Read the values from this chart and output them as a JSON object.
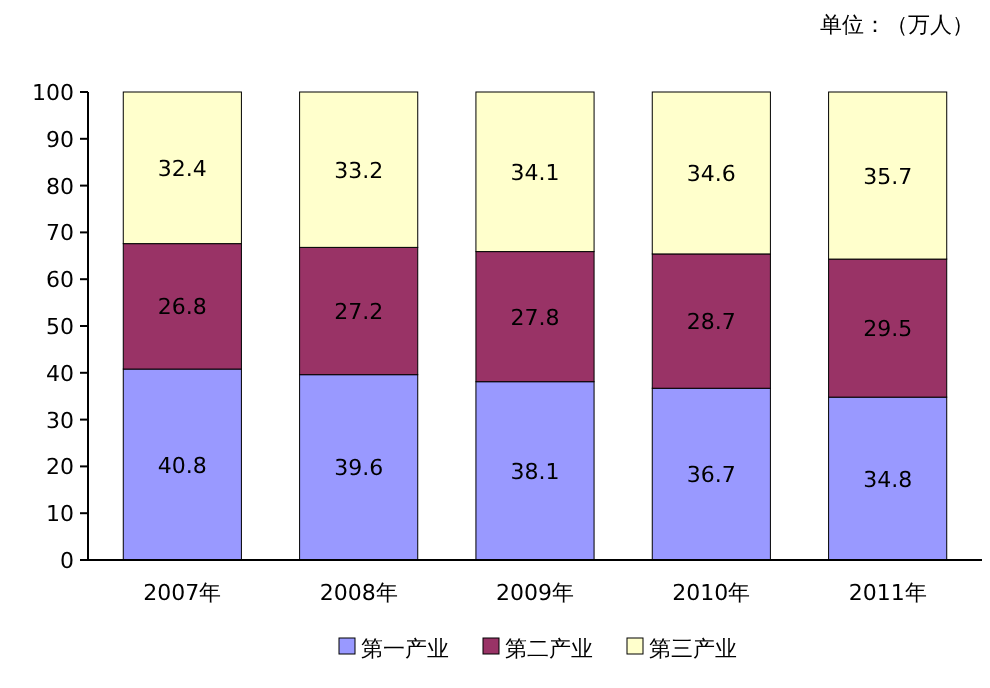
{
  "chart_data": {
    "type": "bar",
    "stacked": true,
    "ylabel": "单位：（万人）",
    "categories": [
      "2007年",
      "2008年",
      "2009年",
      "2010年",
      "2011年"
    ],
    "series": [
      {
        "name": "第一产业",
        "color": "#9999ff",
        "values": [
          40.8,
          39.6,
          38.1,
          36.7,
          34.8
        ]
      },
      {
        "name": "第二产业",
        "color": "#993366",
        "values": [
          26.8,
          27.2,
          27.8,
          28.7,
          29.5
        ]
      },
      {
        "name": "第三产业",
        "color": "#ffffcc",
        "values": [
          32.4,
          33.2,
          34.1,
          34.6,
          35.7
        ]
      }
    ],
    "ylim": [
      0,
      100
    ],
    "yticks": [
      0,
      10,
      20,
      30,
      40,
      50,
      60,
      70,
      80,
      90,
      100
    ],
    "data_labels": true,
    "grid": false,
    "legend": "bottom"
  }
}
